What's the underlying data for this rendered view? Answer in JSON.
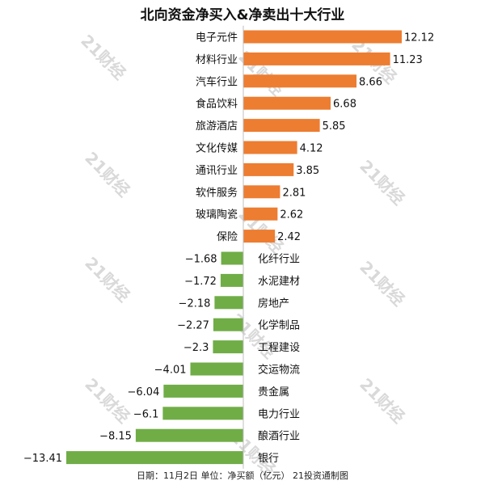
{
  "title": "北向资金净买入&净卖出十大行业",
  "caption": "日期：11月2日 单位：净买额（亿元） 21投资通制图",
  "watermark": "21财经",
  "colors": {
    "positive": "#ed7d31",
    "negative": "#70ad47",
    "axis": "#bfbfbf",
    "text": "#111111"
  },
  "chart_data": {
    "type": "bar",
    "orientation": "horizontal",
    "title": "北向资金净买入&净卖出十大行业",
    "categories": [
      "电子元件",
      "材料行业",
      "汽车行业",
      "食品饮料",
      "旅游酒店",
      "文化传媒",
      "通讯行业",
      "软件服务",
      "玻璃陶瓷",
      "保险",
      "化纤行业",
      "水泥建材",
      "房地产",
      "化学制品",
      "工程建设",
      "交运物流",
      "贵金属",
      "电力行业",
      "酿酒行业",
      "银行"
    ],
    "values": [
      12.12,
      11.23,
      8.66,
      6.68,
      5.85,
      4.12,
      3.85,
      2.81,
      2.62,
      2.42,
      -1.68,
      -1.72,
      -2.18,
      -2.27,
      -2.3,
      -4.01,
      -6.04,
      -6.1,
      -8.15,
      -13.41
    ],
    "value_labels": [
      "12.12",
      "11.23",
      "8.66",
      "6.68",
      "5.85",
      "4.12",
      "3.85",
      "2.81",
      "2.62",
      "2.42",
      "−1.68",
      "−1.72",
      "−2.18",
      "−2.27",
      "−2.3",
      "−4.01",
      "−6.04",
      "−6.1",
      "−8.15",
      "−13.41"
    ],
    "xlim": [
      -13.41,
      12.12
    ],
    "grid": false
  }
}
